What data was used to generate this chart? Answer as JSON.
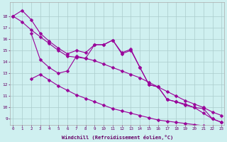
{
  "xlabel": "Windchill (Refroidissement éolien,°C)",
  "background_color": "#cff0f0",
  "line_color": "#990099",
  "grid_color": "#aacccc",
  "xlim": [
    -0.3,
    23.3
  ],
  "ylim": [
    8.5,
    19.2
  ],
  "yticks": [
    9,
    10,
    11,
    12,
    13,
    14,
    15,
    16,
    17,
    18
  ],
  "xticks": [
    0,
    1,
    2,
    3,
    4,
    5,
    6,
    7,
    8,
    9,
    10,
    11,
    12,
    13,
    14,
    15,
    16,
    17,
    18,
    19,
    20,
    21,
    22,
    23
  ],
  "series1_x": [
    0,
    1,
    2,
    3,
    4,
    5,
    6,
    7,
    8,
    9,
    10,
    11,
    12,
    13,
    14,
    15,
    16,
    17,
    18,
    19,
    20,
    21,
    22,
    23
  ],
  "series1_y": [
    18.0,
    18.5,
    17.7,
    16.5,
    15.8,
    15.2,
    14.7,
    15.0,
    14.8,
    15.5,
    15.5,
    15.9,
    14.8,
    15.1,
    13.5,
    12.0,
    11.8,
    10.7,
    10.5,
    10.3,
    10.0,
    9.5,
    9.0,
    8.7
  ],
  "series2_x": [
    0,
    1,
    2,
    3,
    4,
    5,
    6,
    7,
    8,
    9,
    10,
    11,
    12,
    13,
    14,
    15,
    16,
    17,
    18,
    19,
    20,
    21,
    22,
    23
  ],
  "series2_y": [
    18.0,
    17.5,
    16.8,
    16.2,
    15.6,
    15.0,
    14.5,
    14.4,
    14.3,
    14.1,
    13.8,
    13.5,
    13.2,
    12.9,
    12.6,
    12.2,
    11.8,
    11.4,
    11.0,
    10.6,
    10.3,
    10.0,
    9.6,
    9.3
  ],
  "series3_x": [
    2,
    3,
    4,
    5,
    6,
    7,
    8,
    9,
    10,
    11,
    12,
    13,
    14,
    15,
    16,
    17,
    18,
    19,
    20,
    21,
    22,
    23
  ],
  "series3_y": [
    16.5,
    14.2,
    13.5,
    13.0,
    13.2,
    14.5,
    14.3,
    15.5,
    15.5,
    15.9,
    14.7,
    15.0,
    13.5,
    12.0,
    11.8,
    10.7,
    10.5,
    10.2,
    10.0,
    9.9,
    9.0,
    8.7
  ],
  "series4_x": [
    2,
    3,
    4,
    5,
    6,
    7,
    8,
    9,
    10,
    11,
    12,
    13,
    14,
    15,
    16,
    17,
    18,
    19,
    20,
    21,
    22,
    23
  ],
  "series4_y": [
    12.5,
    12.9,
    12.4,
    11.9,
    11.5,
    11.1,
    10.8,
    10.5,
    10.2,
    9.9,
    9.7,
    9.5,
    9.3,
    9.1,
    8.9,
    8.8,
    8.7,
    8.6,
    8.5,
    8.4,
    8.3,
    8.2
  ]
}
